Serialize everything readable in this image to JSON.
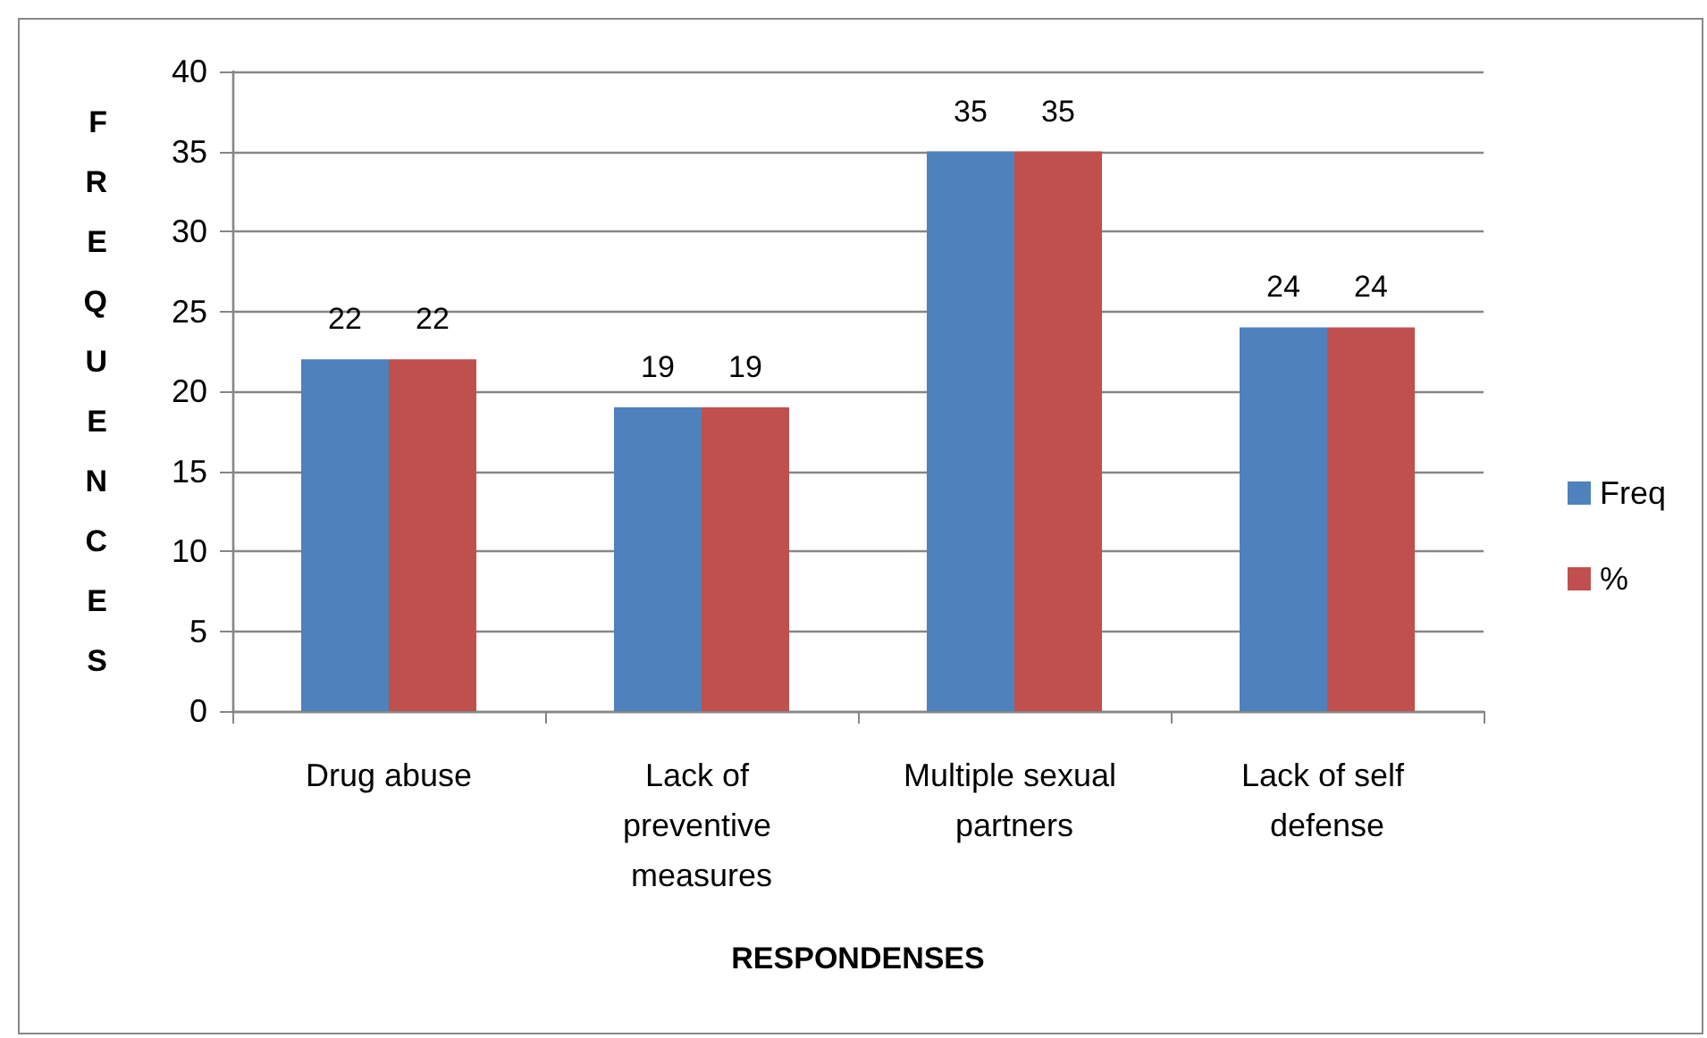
{
  "chart_data": {
    "type": "bar",
    "xlabel": "RESPONDENSES",
    "ylabel": "FREQUENCES",
    "categories": [
      "Drug abuse",
      "Lack of preventive measures",
      "Multiple sexual partners",
      "Lack of self defense"
    ],
    "series": [
      {
        "name": "Freq",
        "color": "#4f81bd",
        "values": [
          22,
          19,
          35,
          24
        ]
      },
      {
        "name": "%",
        "color": "#c0504d",
        "values": [
          22,
          19,
          35,
          24
        ]
      }
    ],
    "ylim": [
      0,
      40
    ],
    "yticks": [
      0,
      5,
      10,
      15,
      20,
      25,
      30,
      35,
      40
    ],
    "grid": "y",
    "legend": "right",
    "data_labels": true
  }
}
